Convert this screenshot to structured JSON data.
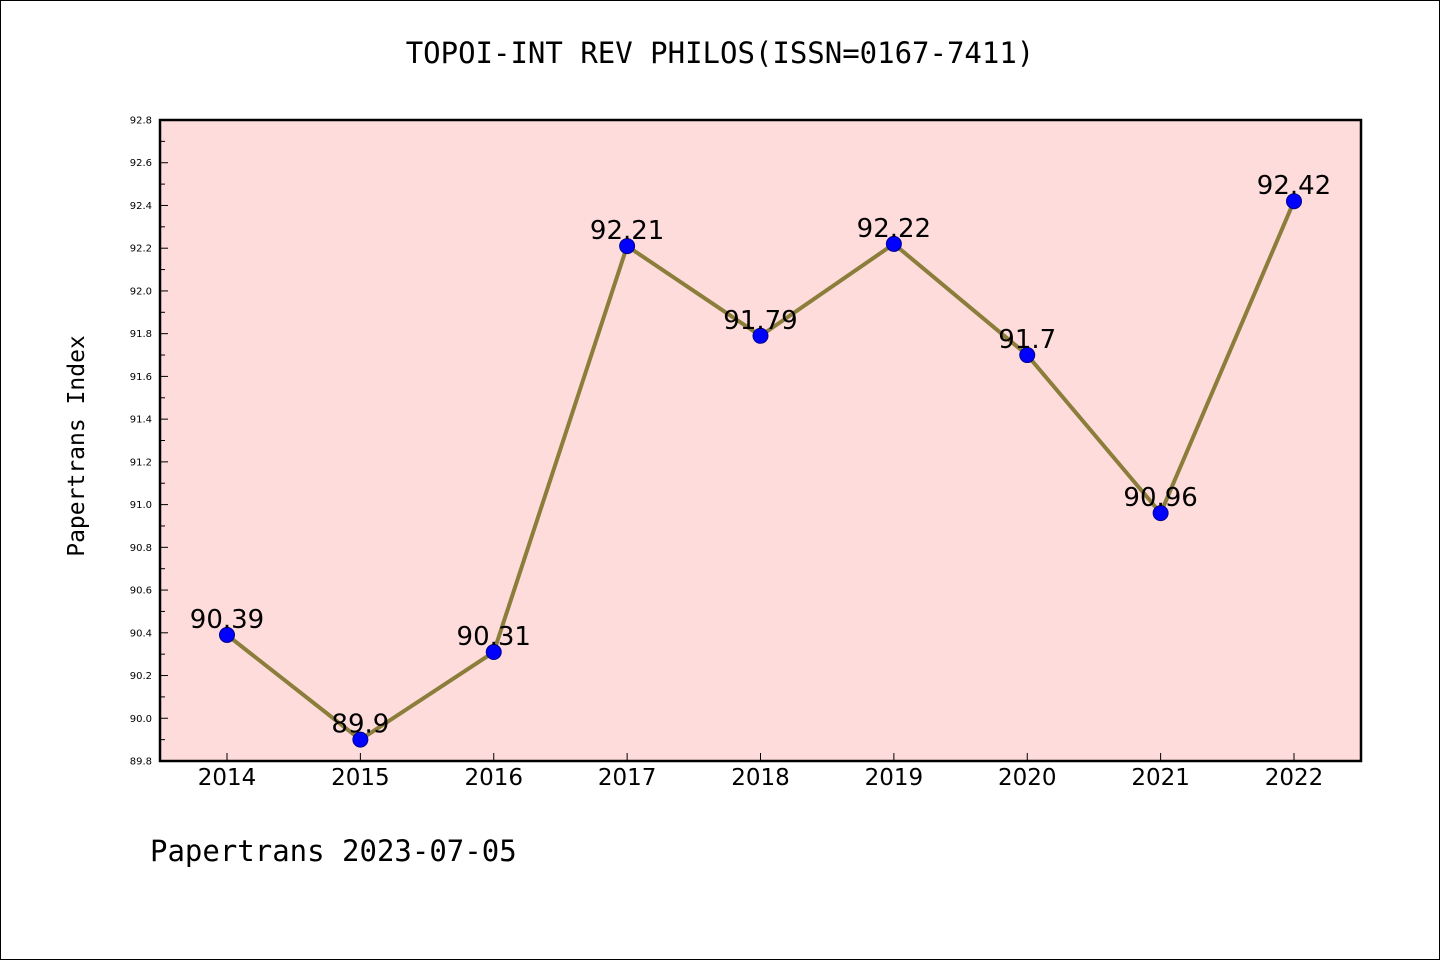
{
  "chart_data": {
    "type": "line",
    "title": "TOPOI-INT REV PHILOS(ISSN=0167-7411)",
    "xlabel": "",
    "ylabel": "Papertrans Index",
    "categories": [
      "2014",
      "2015",
      "2016",
      "2017",
      "2018",
      "2019",
      "2020",
      "2021",
      "2022"
    ],
    "series": [
      {
        "values": [
          90.39,
          89.9,
          90.31,
          92.21,
          91.79,
          92.22,
          91.7,
          90.96,
          92.42
        ],
        "labels": [
          "90.39",
          "89.9",
          "90.31",
          "92.21",
          "91.79",
          "92.22",
          "91.7",
          "90.96",
          "92.42"
        ]
      }
    ],
    "ylim": [
      89.8,
      92.8
    ],
    "yticks": [
      "89.8",
      "90.0",
      "90.2",
      "90.4",
      "90.6",
      "90.8",
      "91.0",
      "91.2",
      "91.4",
      "91.6",
      "91.8",
      "92.0",
      "92.2",
      "92.4",
      "92.6",
      "92.8"
    ],
    "grid": false,
    "colors": {
      "plot_background": "#ffdcdc",
      "line": "#8b7d3a",
      "marker": "#0000ff"
    }
  },
  "footer": {
    "text": "Papertrans 2023-07-05"
  }
}
